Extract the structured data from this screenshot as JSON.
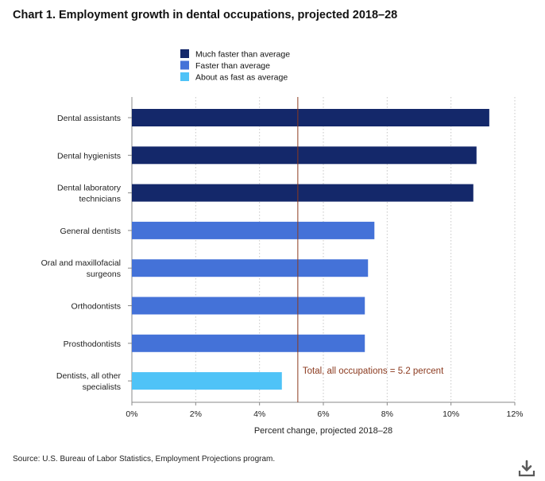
{
  "title": "Chart 1. Employment growth in dental occupations, projected 2018–28",
  "source": "Source: U.S. Bureau of Labor Statistics, Employment Projections program.",
  "download_icon": "download-icon",
  "chart_data": {
    "type": "bar",
    "orientation": "horizontal",
    "categories": [
      [
        "Dental assistants"
      ],
      [
        "Dental hygienists"
      ],
      [
        "Dental laboratory",
        "technicians"
      ],
      [
        "General dentists"
      ],
      [
        "Oral and maxillofacial",
        "surgeons"
      ],
      [
        "Orthodontists"
      ],
      [
        "Prosthodontists"
      ],
      [
        "Dentists, all other",
        "specialists"
      ]
    ],
    "values": [
      11.2,
      10.8,
      10.7,
      7.6,
      7.4,
      7.3,
      7.3,
      4.7
    ],
    "groups": [
      0,
      0,
      0,
      1,
      1,
      1,
      1,
      2
    ],
    "legend": [
      {
        "label": "Much faster than average",
        "color": "#14286a"
      },
      {
        "label": "Faster than average",
        "color": "#4472d8"
      },
      {
        "label": "About as fast as average",
        "color": "#4fc3f7"
      }
    ],
    "legend_position": "top",
    "xlim": [
      0,
      12
    ],
    "xticks": [
      0,
      2,
      4,
      6,
      8,
      10,
      12
    ],
    "xtick_labels": [
      "0%",
      "2%",
      "4%",
      "6%",
      "8%",
      "10%",
      "12%"
    ],
    "xlabel": "Percent change, projected 2018–28",
    "ylabel": "",
    "grid": "vertical dotted",
    "reference_line": {
      "value": 5.2,
      "label": "Total, all occupations = 5.2 percent",
      "color": "#8b3a1f"
    }
  }
}
